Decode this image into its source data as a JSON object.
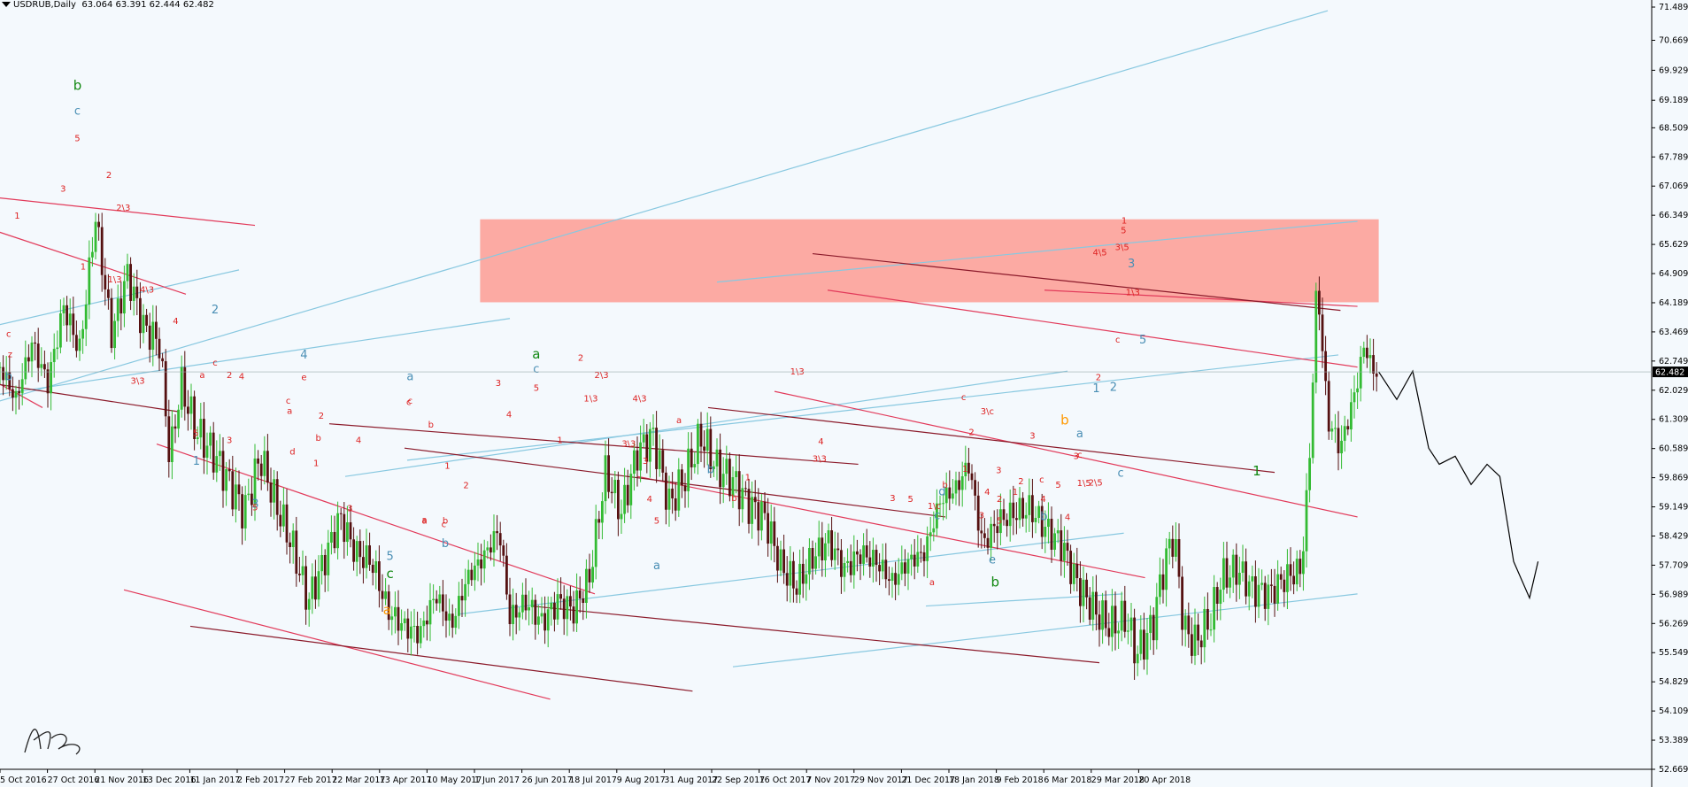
{
  "header": {
    "symbol": "USDRUB,Daily",
    "ohlc": "63.064 63.391 62.444 62.482"
  },
  "chart_data": {
    "type": "candlestick",
    "symbol": "USDRUB",
    "timeframe": "Daily",
    "current_price": "62.482",
    "ylim": [
      52.669,
      71.489
    ],
    "y_ticks": [
      "71.489",
      "70.669",
      "69.929",
      "69.189",
      "68.509",
      "67.789",
      "67.069",
      "66.349",
      "65.629",
      "64.909",
      "64.189",
      "63.469",
      "62.749",
      "62.029",
      "61.309",
      "60.589",
      "59.869",
      "59.149",
      "58.429",
      "57.709",
      "56.989",
      "56.269",
      "55.549",
      "54.829",
      "54.109",
      "53.389",
      "52.669"
    ],
    "x_ticks": [
      "5 Oct 2016",
      "27 Oct 2016",
      "21 Nov 2016",
      "13 Dec 2016",
      "11 Jan 2017",
      "2 Feb 2017",
      "27 Feb 2017",
      "22 Mar 2017",
      "13 Apr 2017",
      "10 May 2017",
      "1 Jun 2017",
      "26 Jun 2017",
      "18 Jul 2017",
      "9 Aug 2017",
      "31 Aug 2017",
      "22 Sep 2017",
      "16 Oct 2017",
      "7 Nov 2017",
      "29 Nov 2017",
      "21 Dec 2017",
      "18 Jan 2018",
      "9 Feb 2018",
      "6 Mar 2018",
      "29 Mar 2018",
      "20 Apr 2018"
    ],
    "anchors": [
      [
        0,
        62.6
      ],
      [
        15,
        61.8
      ],
      [
        30,
        63.2
      ],
      [
        45,
        62.2
      ],
      [
        60,
        64.1
      ],
      [
        75,
        63.0
      ],
      [
        90,
        66.3
      ],
      [
        105,
        63.4
      ],
      [
        120,
        64.9
      ],
      [
        135,
        63.6
      ],
      [
        150,
        63.2
      ],
      [
        160,
        60.3
      ],
      [
        170,
        62.2
      ],
      [
        185,
        61.0
      ],
      [
        200,
        60.5
      ],
      [
        215,
        59.8
      ],
      [
        230,
        59.0
      ],
      [
        245,
        60.4
      ],
      [
        260,
        59.2
      ],
      [
        275,
        58.2
      ],
      [
        290,
        56.8
      ],
      [
        305,
        57.8
      ],
      [
        320,
        58.9
      ],
      [
        335,
        58.0
      ],
      [
        350,
        57.8
      ],
      [
        365,
        56.6
      ],
      [
        380,
        56.2
      ],
      [
        395,
        56.0
      ],
      [
        410,
        57.0
      ],
      [
        425,
        56.2
      ],
      [
        440,
        57.4
      ],
      [
        455,
        57.9
      ],
      [
        470,
        58.6
      ],
      [
        480,
        56.4
      ],
      [
        495,
        56.8
      ],
      [
        510,
        56.3
      ],
      [
        525,
        56.8
      ],
      [
        540,
        56.6
      ],
      [
        555,
        57.4
      ],
      [
        570,
        60.0
      ],
      [
        585,
        59.0
      ],
      [
        600,
        60.5
      ],
      [
        615,
        60.9
      ],
      [
        630,
        59.2
      ],
      [
        645,
        59.9
      ],
      [
        660,
        60.9
      ],
      [
        675,
        60.1
      ],
      [
        690,
        59.8
      ],
      [
        705,
        59.2
      ],
      [
        720,
        58.9
      ],
      [
        735,
        57.7
      ],
      [
        750,
        57.2
      ],
      [
        765,
        57.9
      ],
      [
        780,
        58.3
      ],
      [
        795,
        57.6
      ],
      [
        810,
        58.0
      ],
      [
        825,
        57.8
      ],
      [
        840,
        57.3
      ],
      [
        855,
        57.8
      ],
      [
        870,
        58.0
      ],
      [
        885,
        59.3
      ],
      [
        900,
        59.6
      ],
      [
        912,
        60.2
      ],
      [
        925,
        58.2
      ],
      [
        940,
        58.8
      ],
      [
        955,
        59.0
      ],
      [
        970,
        59.1
      ],
      [
        985,
        58.6
      ],
      [
        1000,
        58.2
      ],
      [
        1015,
        57.2
      ],
      [
        1030,
        56.6
      ],
      [
        1045,
        56.2
      ],
      [
        1060,
        56.4
      ],
      [
        1070,
        55.5
      ],
      [
        1085,
        56.2
      ],
      [
        1095,
        57.6
      ],
      [
        1105,
        58.5
      ],
      [
        1115,
        56.1
      ],
      [
        1125,
        55.8
      ],
      [
        1140,
        56.4
      ],
      [
        1150,
        57.4
      ],
      [
        1165,
        57.6
      ],
      [
        1180,
        57.1
      ],
      [
        1195,
        57.0
      ],
      [
        1210,
        57.4
      ],
      [
        1225,
        57.6
      ],
      [
        1232,
        59.9
      ],
      [
        1240,
        64.8
      ],
      [
        1250,
        61.3
      ],
      [
        1262,
        60.6
      ],
      [
        1275,
        61.9
      ],
      [
        1285,
        63.2
      ],
      [
        1292,
        62.5
      ],
      [
        1298,
        62.482
      ]
    ],
    "forecast": [
      [
        1298,
        62.482
      ],
      [
        1315,
        61.8
      ],
      [
        1330,
        62.5
      ],
      [
        1345,
        60.6
      ],
      [
        1355,
        60.2
      ],
      [
        1370,
        60.4
      ],
      [
        1385,
        59.7
      ],
      [
        1400,
        60.2
      ],
      [
        1412,
        59.9
      ],
      [
        1425,
        57.8
      ],
      [
        1440,
        56.9
      ],
      [
        1448,
        57.8
      ]
    ],
    "labels": [
      {
        "t": "b",
        "c": "#118811"
      },
      {
        "t": "c",
        "c": "#4a8fb5"
      },
      {
        "t": "5",
        "c": "#dd2222"
      },
      {
        "t": "2",
        "c": "#dd2222"
      },
      {
        "t": "3",
        "c": "#dd2222"
      },
      {
        "t": "1",
        "c": "#dd2222"
      },
      {
        "t": "c",
        "c": "#dd2222"
      },
      {
        "t": "z",
        "c": "#dd2222"
      },
      {
        "t": "b",
        "c": "#4a8fb5"
      },
      {
        "t": "1",
        "c": "#dd2222"
      },
      {
        "t": "2\\3",
        "c": "#dd2222"
      },
      {
        "t": "1\\3",
        "c": "#dd2222"
      },
      {
        "t": "4\\3",
        "c": "#dd2222"
      },
      {
        "t": "4",
        "c": "#dd2222"
      },
      {
        "t": "3\\3",
        "c": "#dd2222"
      },
      {
        "t": "2",
        "c": "#4a8fb5"
      },
      {
        "t": "a",
        "c": "#dd2222"
      },
      {
        "t": "c",
        "c": "#dd2222"
      },
      {
        "t": "2",
        "c": "#dd2222"
      },
      {
        "t": "4",
        "c": "#dd2222"
      },
      {
        "t": "5",
        "c": "#dd2222"
      },
      {
        "t": "3",
        "c": "#dd2222"
      },
      {
        "t": "1",
        "c": "#4a8fb5"
      },
      {
        "t": "3",
        "c": "#4a8fb5"
      },
      {
        "t": "4",
        "c": "#4a8fb5"
      },
      {
        "t": "e",
        "c": "#dd2222"
      },
      {
        "t": "c",
        "c": "#dd2222"
      },
      {
        "t": "a",
        "c": "#dd2222"
      },
      {
        "t": "2",
        "c": "#dd2222"
      },
      {
        "t": "b",
        "c": "#dd2222"
      },
      {
        "t": "d",
        "c": "#dd2222"
      },
      {
        "t": "5",
        "c": "#dd2222"
      },
      {
        "t": "1",
        "c": "#dd2222"
      },
      {
        "t": "4",
        "c": "#dd2222"
      },
      {
        "t": "3",
        "c": "#dd2222"
      },
      {
        "t": "c",
        "c": "#dd2222"
      },
      {
        "t": "a",
        "c": "#dd2222"
      },
      {
        "t": "5",
        "c": "#4a8fb5"
      },
      {
        "t": "c",
        "c": "#118811"
      },
      {
        "t": "a",
        "c": "#ff9900"
      },
      {
        "t": "a",
        "c": "#4a8fb5"
      },
      {
        "t": "c",
        "c": "#dd2222"
      },
      {
        "t": "b",
        "c": "#dd2222"
      },
      {
        "t": "1",
        "c": "#dd2222"
      },
      {
        "t": "2",
        "c": "#dd2222"
      },
      {
        "t": "b",
        "c": "#dd2222"
      },
      {
        "t": "a",
        "c": "#dd2222"
      },
      {
        "t": "c",
        "c": "#dd2222"
      },
      {
        "t": "b",
        "c": "#4a8fb5"
      },
      {
        "t": "3",
        "c": "#dd2222"
      },
      {
        "t": "4",
        "c": "#dd2222"
      },
      {
        "t": "a",
        "c": "#118811"
      },
      {
        "t": "c",
        "c": "#4a8fb5"
      },
      {
        "t": "5",
        "c": "#dd2222"
      },
      {
        "t": "2",
        "c": "#dd2222"
      },
      {
        "t": "1",
        "c": "#dd2222"
      },
      {
        "t": "2\\3",
        "c": "#dd2222"
      },
      {
        "t": "1\\3",
        "c": "#dd2222"
      },
      {
        "t": "4\\3",
        "c": "#dd2222"
      },
      {
        "t": "3\\3",
        "c": "#dd2222"
      },
      {
        "t": "3",
        "c": "#dd2222"
      },
      {
        "t": "4",
        "c": "#dd2222"
      },
      {
        "t": "5",
        "c": "#dd2222"
      },
      {
        "t": "a",
        "c": "#4a8fb5"
      },
      {
        "t": "a",
        "c": "#dd2222"
      },
      {
        "t": "b",
        "c": "#dd2222"
      },
      {
        "t": "b",
        "c": "#4a8fb5"
      },
      {
        "t": "1",
        "c": "#dd2222"
      },
      {
        "t": "1\\3",
        "c": "#dd2222"
      },
      {
        "t": "4",
        "c": "#dd2222"
      },
      {
        "t": "3\\3",
        "c": "#dd2222"
      },
      {
        "t": "3",
        "c": "#dd2222"
      },
      {
        "t": "5",
        "c": "#dd2222"
      },
      {
        "t": "c",
        "c": "#4a8fb5"
      },
      {
        "t": "a",
        "c": "#dd2222"
      },
      {
        "t": "1\\c",
        "c": "#dd2222"
      },
      {
        "t": "b",
        "c": "#dd2222"
      },
      {
        "t": "d",
        "c": "#4a8fb5"
      },
      {
        "t": "c",
        "c": "#dd2222"
      },
      {
        "t": "3\\c",
        "c": "#dd2222"
      },
      {
        "t": "2",
        "c": "#dd2222"
      },
      {
        "t": "1",
        "c": "#dd2222"
      },
      {
        "t": "3",
        "c": "#dd2222"
      },
      {
        "t": "4",
        "c": "#dd2222"
      },
      {
        "t": "e",
        "c": "#4a8fb5"
      },
      {
        "t": "b",
        "c": "#118811"
      },
      {
        "t": "3",
        "c": "#dd2222"
      },
      {
        "t": "2",
        "c": "#dd2222"
      },
      {
        "t": "5",
        "c": "#dd2222"
      },
      {
        "t": "1",
        "c": "#dd2222"
      },
      {
        "t": "3",
        "c": "#dd2222"
      },
      {
        "t": "4",
        "c": "#dd2222"
      },
      {
        "t": "5",
        "c": "#dd2222"
      },
      {
        "t": "a",
        "c": "#4a8fb5"
      },
      {
        "t": "b",
        "c": "#4a8fb5"
      },
      {
        "t": "3",
        "c": "#dd2222"
      },
      {
        "t": "1\\5",
        "c": "#dd2222"
      },
      {
        "t": "2\\5",
        "c": "#dd2222"
      },
      {
        "t": "4",
        "c": "#dd2222"
      },
      {
        "t": "c",
        "c": "#dd2222"
      },
      {
        "t": "2",
        "c": "#dd2222"
      },
      {
        "t": "b",
        "c": "#ff9900"
      },
      {
        "t": "c",
        "c": "#4a8fb5"
      },
      {
        "t": "5",
        "c": "#dd2222"
      },
      {
        "t": "3\\5",
        "c": "#dd2222"
      },
      {
        "t": "4\\5",
        "c": "#dd2222"
      },
      {
        "t": "c",
        "c": "#dd2222"
      },
      {
        "t": "1",
        "c": "#4a8fb5"
      },
      {
        "t": "2",
        "c": "#4a8fb5"
      },
      {
        "t": "c",
        "c": "#dd2222"
      },
      {
        "t": "2",
        "c": "#dd2222"
      },
      {
        "t": "1",
        "c": "#dd2222"
      },
      {
        "t": "1\\3",
        "c": "#dd2222"
      },
      {
        "t": "3",
        "c": "#4a8fb5"
      },
      {
        "t": "5",
        "c": "#4a8fb5"
      },
      {
        "t": "1",
        "c": "#118811"
      }
    ],
    "watermark": "AP3"
  },
  "colors": {
    "background": "#f4f9fd",
    "bull": "#33bb33",
    "bear": "#551111",
    "zone": "#ff8a80",
    "channel_blue": "#88c8e0",
    "line_red": "#e23a5a",
    "line_darkred": "#8b1a2a"
  }
}
